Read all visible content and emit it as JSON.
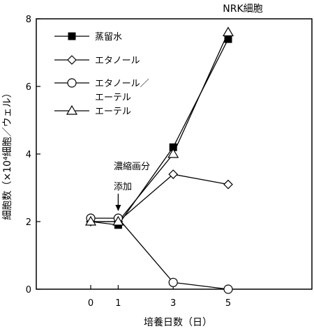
{
  "chart_data": {
    "type": "line",
    "title": "NRK細胞",
    "xlabel": "培養日数（日）",
    "ylabel": "細胞数（×10⁴細胞／ウェル）",
    "x": [
      0,
      1,
      3,
      5
    ],
    "x_ticks": [
      "0",
      "1",
      "3",
      "5"
    ],
    "ylim": [
      0,
      8
    ],
    "y_ticks": [
      "0",
      "2",
      "4",
      "6",
      "8"
    ],
    "grid": false,
    "legend_position": "top-left",
    "series": [
      {
        "name": "蒸留水",
        "marker": "filled-square",
        "values": [
          2.0,
          1.9,
          4.2,
          7.4
        ]
      },
      {
        "name": "エタノール",
        "marker": "open-diamond",
        "values": [
          2.0,
          2.0,
          3.4,
          3.1
        ]
      },
      {
        "name": "エタノール／エーテル",
        "name_lines": [
          "エタノール／",
          "エーテル"
        ],
        "marker": "open-circle",
        "values": [
          2.1,
          2.1,
          0.2,
          0.0
        ]
      },
      {
        "name": "エーテル",
        "marker": "open-triangle",
        "values": [
          2.0,
          2.0,
          4.0,
          7.6
        ]
      }
    ],
    "annotation": {
      "lines": [
        "濃縮画分",
        "添加"
      ],
      "x": 1
    }
  }
}
